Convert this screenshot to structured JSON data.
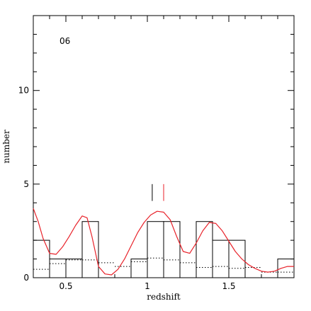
{
  "chart_data": {
    "type": "bar",
    "panel_label": "06",
    "xlabel": "redshift",
    "ylabel": "number",
    "xlim": [
      0.3,
      1.9
    ],
    "ylim": [
      0,
      14
    ],
    "x_ticks": [
      0.5,
      1,
      1.5
    ],
    "x_tick_labels": [
      "0.5",
      "1",
      "1.5"
    ],
    "y_ticks": [
      0,
      5,
      10
    ],
    "y_tick_labels": [
      "0",
      "5",
      "10"
    ],
    "bin_width": 0.1,
    "histogram": {
      "bin_starts": [
        0.3,
        0.4,
        0.5,
        0.6,
        0.7,
        0.8,
        0.9,
        1.0,
        1.1,
        1.2,
        1.3,
        1.4,
        1.5,
        1.6,
        1.7,
        1.8
      ],
      "counts": [
        2,
        1,
        1,
        3,
        0,
        0,
        1,
        3,
        3,
        0,
        3,
        2,
        2,
        0,
        0,
        1
      ]
    },
    "dotted_histogram": {
      "bin_starts": [
        0.3,
        0.4,
        0.5,
        0.6,
        0.7,
        0.8,
        0.9,
        1.0,
        1.1,
        1.2,
        1.3,
        1.4,
        1.5,
        1.6,
        1.7,
        1.8
      ],
      "values": [
        0.45,
        0.75,
        0.95,
        0.95,
        0.8,
        0.6,
        0.85,
        1.05,
        0.95,
        0.8,
        0.55,
        0.6,
        0.5,
        0.55,
        0.3,
        0.3
      ]
    },
    "smooth_curve": {
      "color": "#e8222a",
      "x": [
        0.3,
        0.33,
        0.36,
        0.4,
        0.44,
        0.48,
        0.52,
        0.56,
        0.6,
        0.63,
        0.66,
        0.7,
        0.74,
        0.78,
        0.82,
        0.86,
        0.9,
        0.94,
        0.98,
        1.02,
        1.06,
        1.1,
        1.14,
        1.18,
        1.22,
        1.26,
        1.3,
        1.34,
        1.38,
        1.42,
        1.46,
        1.5,
        1.54,
        1.58,
        1.62,
        1.66,
        1.7,
        1.74,
        1.78,
        1.82,
        1.86,
        1.9
      ],
      "y": [
        3.7,
        3.0,
        2.1,
        1.3,
        1.25,
        1.65,
        2.2,
        2.8,
        3.3,
        3.2,
        2.2,
        0.6,
        0.2,
        0.15,
        0.45,
        1.0,
        1.7,
        2.4,
        2.95,
        3.35,
        3.55,
        3.5,
        3.1,
        2.2,
        1.4,
        1.3,
        1.85,
        2.5,
        2.95,
        2.9,
        2.5,
        1.95,
        1.4,
        1.0,
        0.7,
        0.5,
        0.35,
        0.3,
        0.35,
        0.5,
        0.6,
        0.6
      ]
    },
    "markers": [
      {
        "x": 1.03,
        "y_from": 4.1,
        "y_to": 5.0,
        "color": "#000000"
      },
      {
        "x": 1.1,
        "y_from": 4.1,
        "y_to": 5.0,
        "color": "#e8222a"
      }
    ],
    "grid": false,
    "colors": {
      "histogram": "#000000",
      "curve": "#e8222a",
      "dotted": "#000000"
    }
  }
}
